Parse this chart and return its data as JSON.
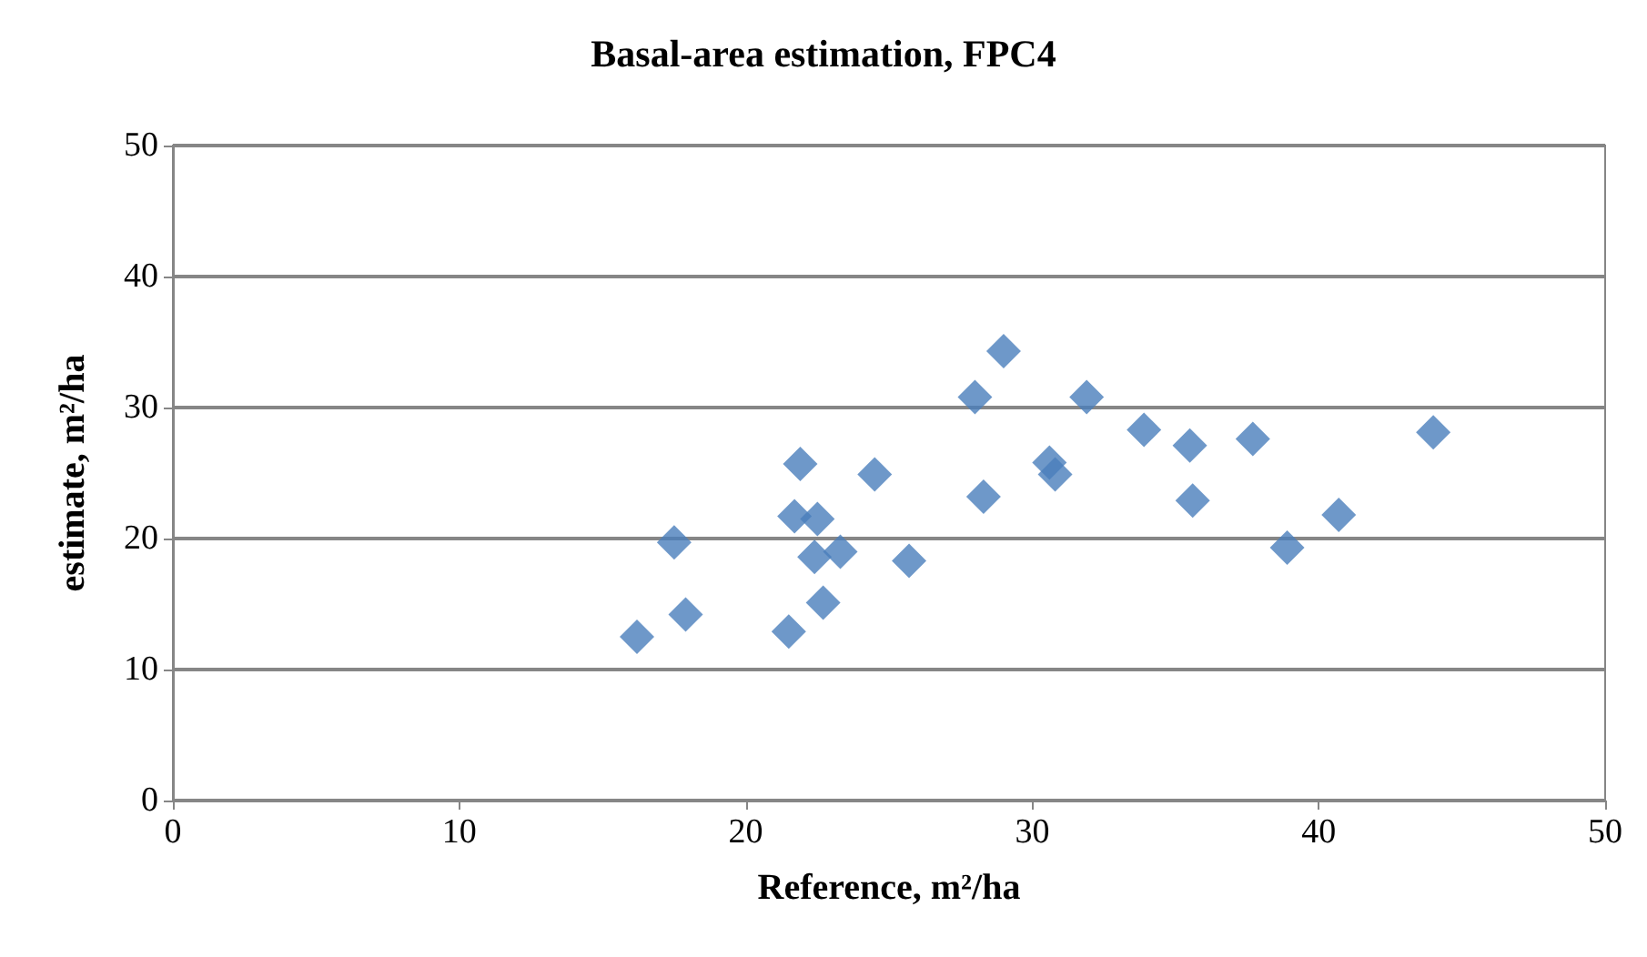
{
  "chart_data": {
    "type": "scatter",
    "title": "Basal-area estimation, FPC4",
    "xlabel": "Reference, m²/ha",
    "ylabel": "estimate, m²/ha",
    "x": [
      16.2,
      17.5,
      17.9,
      21.5,
      21.9,
      21.7,
      22.5,
      22.4,
      23.3,
      22.7,
      24.5,
      25.7,
      28.0,
      29.0,
      28.3,
      30.6,
      30.8,
      31.9,
      33.9,
      35.5,
      35.6,
      37.7,
      38.9,
      40.7,
      44.0
    ],
    "series": [
      {
        "color": "#4a7ebb",
        "values": [
          12.5,
          19.7,
          14.2,
          12.9,
          25.7,
          21.7,
          21.5,
          18.6,
          19.0,
          15.1,
          24.9,
          18.3,
          30.8,
          34.3,
          23.2,
          25.8,
          24.9,
          30.8,
          28.3,
          27.1,
          22.9,
          27.6,
          19.3,
          21.8,
          28.1
        ]
      }
    ],
    "xlim": [
      0,
      50
    ],
    "xticks": [
      0,
      10,
      20,
      30,
      40,
      50
    ],
    "ylim": [
      0,
      50
    ],
    "yticks": [
      0,
      10,
      20,
      30,
      40,
      50
    ],
    "grid": "y",
    "marker": "diamond"
  }
}
